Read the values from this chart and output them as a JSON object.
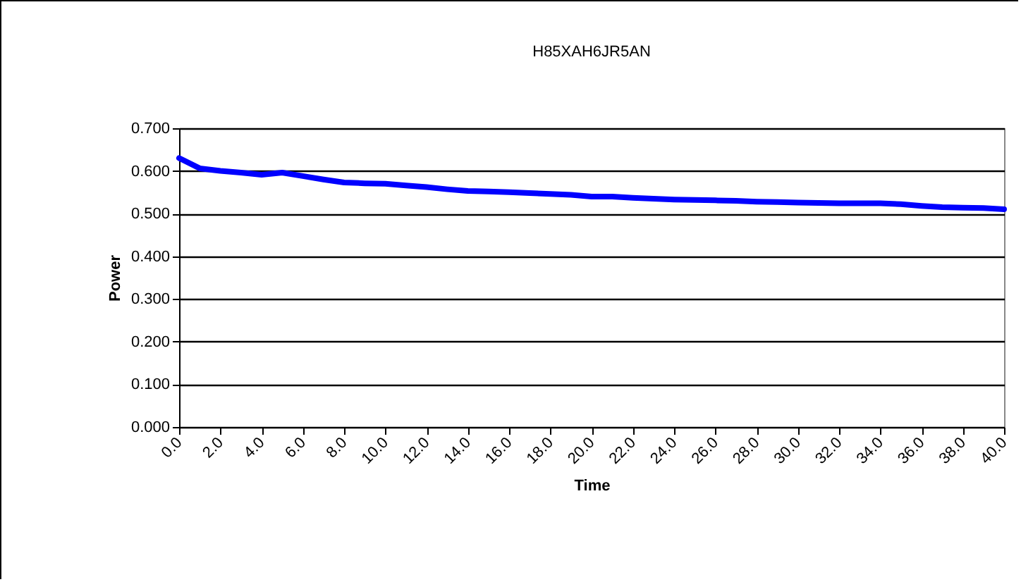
{
  "chart_data": {
    "type": "line",
    "title": "H85XAH6JR5AN",
    "xlabel": "Time",
    "ylabel": "Power",
    "x": [
      0,
      1,
      2,
      3,
      4,
      5,
      6,
      7,
      8,
      9,
      10,
      11,
      12,
      13,
      14,
      15,
      16,
      17,
      18,
      19,
      20,
      21,
      22,
      23,
      24,
      25,
      26,
      27,
      28,
      29,
      30,
      31,
      32,
      33,
      34,
      35,
      36,
      37,
      38,
      39,
      40
    ],
    "series": [
      {
        "color": "#0000ff",
        "values": [
          0.63,
          0.606,
          0.6,
          0.596,
          0.591,
          0.596,
          0.588,
          0.58,
          0.573,
          0.571,
          0.57,
          0.566,
          0.562,
          0.557,
          0.553,
          0.552,
          0.55,
          0.548,
          0.546,
          0.544,
          0.54,
          0.54,
          0.537,
          0.535,
          0.533,
          0.532,
          0.531,
          0.53,
          0.528,
          0.527,
          0.526,
          0.525,
          0.524,
          0.524,
          0.524,
          0.522,
          0.518,
          0.515,
          0.514,
          0.513,
          0.51
        ]
      }
    ],
    "xlim": [
      0,
      40
    ],
    "xticks": [
      {
        "value": 0,
        "label": "0.0"
      },
      {
        "value": 2,
        "label": "2.0"
      },
      {
        "value": 4,
        "label": "4.0"
      },
      {
        "value": 6,
        "label": "6.0"
      },
      {
        "value": 8,
        "label": "8.0"
      },
      {
        "value": 10,
        "label": "10.0"
      },
      {
        "value": 12,
        "label": "12.0"
      },
      {
        "value": 14,
        "label": "14.0"
      },
      {
        "value": 16,
        "label": "16.0"
      },
      {
        "value": 18,
        "label": "18.0"
      },
      {
        "value": 20,
        "label": "20.0"
      },
      {
        "value": 22,
        "label": "22.0"
      },
      {
        "value": 24,
        "label": "24.0"
      },
      {
        "value": 26,
        "label": "26.0"
      },
      {
        "value": 28,
        "label": "28.0"
      },
      {
        "value": 30,
        "label": "30.0"
      },
      {
        "value": 32,
        "label": "32.0"
      },
      {
        "value": 34,
        "label": "34.0"
      },
      {
        "value": 36,
        "label": "36.0"
      },
      {
        "value": 38,
        "label": "38.0"
      },
      {
        "value": 40,
        "label": "40.0"
      }
    ],
    "ylim": [
      0,
      0.7
    ],
    "yticks": [
      {
        "value": 0,
        "label": "0.000"
      },
      {
        "value": 0.1,
        "label": "0.100"
      },
      {
        "value": 0.2,
        "label": "0.200"
      },
      {
        "value": 0.3,
        "label": "0.300"
      },
      {
        "value": 0.4,
        "label": "0.400"
      },
      {
        "value": 0.5,
        "label": "0.500"
      },
      {
        "value": 0.6,
        "label": "0.600"
      },
      {
        "value": 0.7,
        "label": "0.700"
      }
    ],
    "grid": "y",
    "legend": false,
    "marker": "none",
    "line_style": "solid"
  }
}
